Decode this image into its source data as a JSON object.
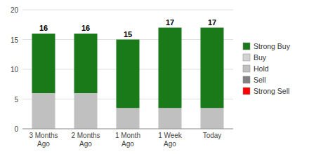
{
  "chart_data": {
    "type": "bar",
    "stacked": true,
    "categories": [
      "3 Months\nAgo",
      "2 Months\nAgo",
      "1 Month\nAgo",
      "1 Week\nAgo",
      "Today"
    ],
    "series": [
      {
        "name": "Strong Sell",
        "color": "#ff0000",
        "values": [
          0,
          0,
          0,
          0,
          0
        ]
      },
      {
        "name": "Sell",
        "color": "#808080",
        "values": [
          0,
          0,
          0,
          0,
          0
        ]
      },
      {
        "name": "Hold",
        "color": "#c0c0c0",
        "values": [
          6,
          6,
          3.5,
          3.5,
          3.5
        ]
      },
      {
        "name": "Buy",
        "color": "#d3d3d3",
        "values": [
          0,
          0,
          0,
          0,
          0
        ]
      },
      {
        "name": "Strong Buy",
        "color": "#1a7a1a",
        "values": [
          10,
          10,
          11.5,
          13.5,
          13.5
        ]
      }
    ],
    "totals": [
      16,
      16,
      15,
      17,
      17
    ],
    "ylim": [
      0,
      20
    ],
    "yticks": [
      0,
      5,
      10,
      15,
      20
    ],
    "grid": true,
    "legend": "right"
  }
}
